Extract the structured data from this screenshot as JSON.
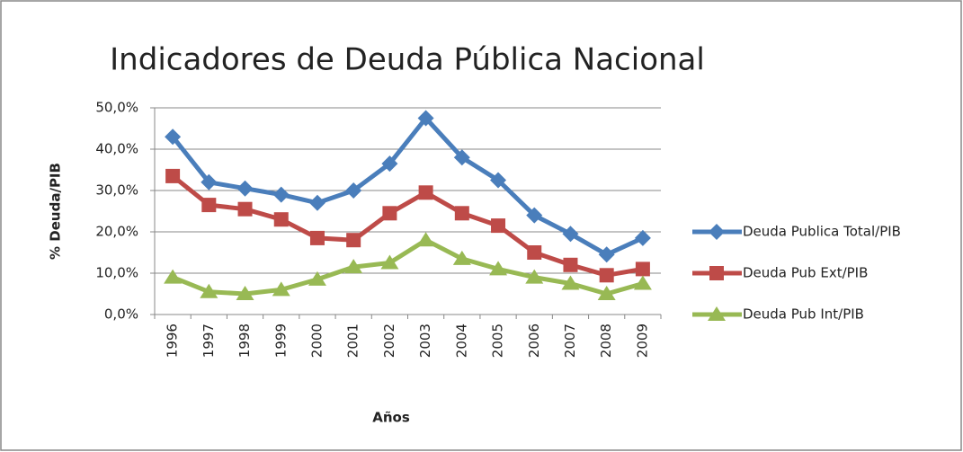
{
  "chart_data": {
    "type": "line",
    "title": "Indicadores de Deuda Pública Nacional",
    "y_label": "% Deuda/PIB",
    "x_label": "Años",
    "categories": [
      "1996",
      "1997",
      "1998",
      "1999",
      "2000",
      "2001",
      "2002",
      "2003",
      "2004",
      "2005",
      "2006",
      "2007",
      "2008",
      "2009"
    ],
    "series": [
      {
        "name": "Deuda Publica Total/PIB",
        "color": "#4a7ebb",
        "marker": "diamond",
        "values": [
          43,
          32,
          30.5,
          29,
          27,
          30,
          36.5,
          47.5,
          38,
          32.5,
          24,
          19.5,
          14.5,
          18.5
        ]
      },
      {
        "name": "Deuda Pub Ext/PIB",
        "color": "#be4b48",
        "marker": "square",
        "values": [
          33.5,
          26.5,
          25.5,
          23,
          18.5,
          18,
          24.5,
          29.5,
          24.5,
          21.5,
          15,
          12,
          9.5,
          11
        ]
      },
      {
        "name": "Deuda Pub Int/PIB",
        "color": "#98b954",
        "marker": "triangle",
        "values": [
          9,
          5.5,
          5,
          6,
          8.5,
          11.5,
          12.5,
          18,
          13.5,
          11,
          9,
          7.5,
          5,
          7.5
        ]
      }
    ],
    "ylim": [
      0,
      50
    ],
    "yticks": [
      {
        "value": 0,
        "label": "0,0%"
      },
      {
        "value": 10,
        "label": "10,0%"
      },
      {
        "value": 20,
        "label": "20,0%"
      },
      {
        "value": 30,
        "label": "30,0%"
      },
      {
        "value": 40,
        "label": "40,0%"
      },
      {
        "value": 50,
        "label": "50,0%"
      }
    ],
    "grid": true,
    "legend": "right"
  }
}
